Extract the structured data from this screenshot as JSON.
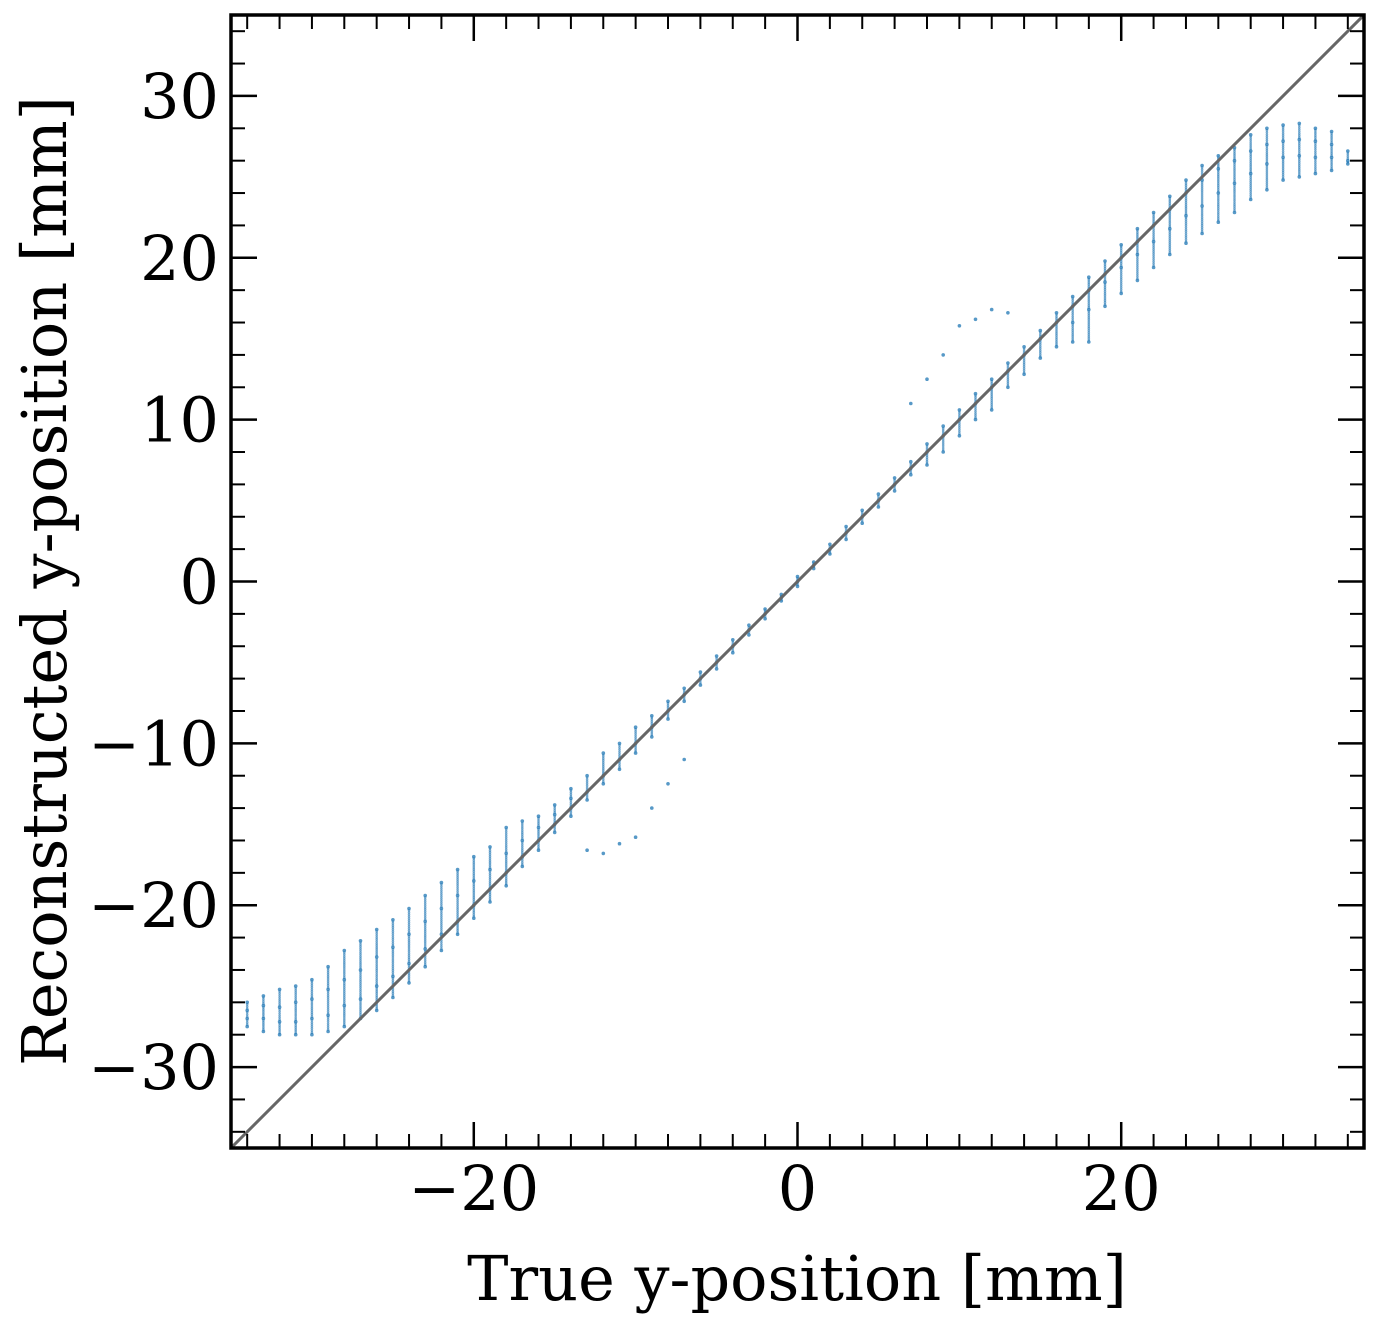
{
  "chart_data": {
    "type": "scatter",
    "title": "",
    "xlabel": "True y-position [mm]",
    "ylabel": "Reconstructed y-position [mm]",
    "xlim": [
      -35,
      35
    ],
    "ylim": [
      -35,
      35
    ],
    "x_ticks": [
      -20,
      0,
      20
    ],
    "x_tick_labels": [
      "−20",
      "0",
      "20"
    ],
    "y_ticks": [
      -30,
      -20,
      -10,
      0,
      10,
      20,
      30
    ],
    "y_tick_labels": [
      "−30",
      "−20",
      "−10",
      "0",
      "10",
      "20",
      "30"
    ],
    "minor_tick_step": 2,
    "grid": false,
    "legend": "none",
    "reference_line": {
      "x": [
        -35,
        35
      ],
      "y": [
        -35,
        35
      ],
      "color": "#666666"
    },
    "series": [
      {
        "color": "#1f77b4",
        "marker": "dot",
        "columns": [
          {
            "x": -34,
            "y": [
              -27.5,
              -27.0,
              -26.5,
              -26.0
            ]
          },
          {
            "x": -33,
            "y": [
              -27.8,
              -27.0,
              -26.2,
              -25.6
            ]
          },
          {
            "x": -32,
            "y": [
              -28.0,
              -27.2,
              -26.3,
              -25.2
            ]
          },
          {
            "x": -31,
            "y": [
              -28.0,
              -27.2,
              -26.0,
              -25.0
            ]
          },
          {
            "x": -30,
            "y": [
              -28.0,
              -27.0,
              -25.8,
              -24.6
            ]
          },
          {
            "x": -29,
            "y": [
              -27.8,
              -26.8,
              -25.2,
              -23.8
            ]
          },
          {
            "x": -28,
            "y": [
              -27.5,
              -26.2,
              -24.6,
              -22.8
            ]
          },
          {
            "x": -27,
            "y": [
              -27.0,
              -25.8,
              -24.0,
              -22.2
            ]
          },
          {
            "x": -26,
            "y": [
              -26.5,
              -25.0,
              -23.2,
              -21.5
            ]
          },
          {
            "x": -25,
            "y": [
              -25.7,
              -24.4,
              -22.6,
              -20.9
            ]
          },
          {
            "x": -24,
            "y": [
              -24.8,
              -23.6,
              -21.8,
              -20.2
            ]
          },
          {
            "x": -23,
            "y": [
              -23.8,
              -22.7,
              -21.0,
              -19.4
            ]
          },
          {
            "x": -22,
            "y": [
              -22.8,
              -21.8,
              -20.2,
              -18.6
            ]
          },
          {
            "x": -21,
            "y": [
              -21.8,
              -21.0,
              -19.4,
              -17.8
            ]
          },
          {
            "x": -20,
            "y": [
              -20.8,
              -20.0,
              -18.5,
              -17.0
            ]
          },
          {
            "x": -19,
            "y": [
              -19.8,
              -19.0,
              -17.8,
              -16.4
            ]
          },
          {
            "x": -18,
            "y": [
              -18.8,
              -18.0,
              -16.8,
              -15.2
            ]
          },
          {
            "x": -17,
            "y": [
              -17.6,
              -17.0,
              -16.0,
              -14.8
            ]
          },
          {
            "x": -16,
            "y": [
              -16.6,
              -16.0,
              -15.2,
              -14.5
            ]
          },
          {
            "x": -15,
            "y": [
              -15.5,
              -15.0,
              -14.4,
              -13.8
            ]
          },
          {
            "x": -14,
            "y": [
              -14.5,
              -14.0,
              -13.4,
              -12.8
            ]
          },
          {
            "x": -13,
            "y": [
              -16.6,
              -13.5,
              -13.0,
              -12.0
            ]
          },
          {
            "x": -12,
            "y": [
              -16.8,
              -12.5,
              -12.0,
              -10.6
            ]
          },
          {
            "x": -11,
            "y": [
              -16.2,
              -11.6,
              -11.0,
              -10.0
            ]
          },
          {
            "x": -10,
            "y": [
              -15.8,
              -10.6,
              -10.0,
              -9.0
            ]
          },
          {
            "x": -9,
            "y": [
              -14.0,
              -9.6,
              -9.0,
              -8.3
            ]
          },
          {
            "x": -8,
            "y": [
              -12.5,
              -8.5,
              -8.0,
              -7.4
            ]
          },
          {
            "x": -7,
            "y": [
              -11.0,
              -7.4,
              -7.0,
              -6.6
            ]
          },
          {
            "x": -6,
            "y": [
              -6.4,
              -6.0,
              -5.6
            ]
          },
          {
            "x": -5,
            "y": [
              -5.4,
              -5.0,
              -4.6
            ]
          },
          {
            "x": -4,
            "y": [
              -4.4,
              -4.0,
              -3.6
            ]
          },
          {
            "x": -3,
            "y": [
              -3.3,
              -3.0,
              -2.7
            ]
          },
          {
            "x": -2,
            "y": [
              -2.3,
              -2.0,
              -1.7
            ]
          },
          {
            "x": -1,
            "y": [
              -1.2,
              -1.0,
              -0.8
            ]
          },
          {
            "x": 0,
            "y": [
              -0.3,
              0.0,
              0.3
            ]
          },
          {
            "x": 1,
            "y": [
              0.8,
              1.0,
              1.2
            ]
          },
          {
            "x": 2,
            "y": [
              1.7,
              2.0,
              2.3
            ]
          },
          {
            "x": 3,
            "y": [
              2.6,
              3.0,
              3.4
            ]
          },
          {
            "x": 4,
            "y": [
              3.6,
              4.0,
              4.4
            ]
          },
          {
            "x": 5,
            "y": [
              4.6,
              5.0,
              5.4
            ]
          },
          {
            "x": 6,
            "y": [
              5.6,
              6.0,
              6.4
            ]
          },
          {
            "x": 7,
            "y": [
              6.6,
              7.0,
              7.4,
              11.0
            ]
          },
          {
            "x": 8,
            "y": [
              7.2,
              8.0,
              8.5,
              12.5
            ]
          },
          {
            "x": 9,
            "y": [
              8.0,
              9.0,
              9.6,
              14.0
            ]
          },
          {
            "x": 10,
            "y": [
              9.0,
              10.0,
              10.6,
              15.8
            ]
          },
          {
            "x": 11,
            "y": [
              10.0,
              11.0,
              11.6,
              16.2
            ]
          },
          {
            "x": 12,
            "y": [
              10.6,
              12.0,
              12.5,
              16.8
            ]
          },
          {
            "x": 13,
            "y": [
              12.0,
              13.0,
              13.5,
              16.6
            ]
          },
          {
            "x": 14,
            "y": [
              12.8,
              14.0,
              14.5
            ]
          },
          {
            "x": 15,
            "y": [
              13.8,
              15.0,
              15.5
            ]
          },
          {
            "x": 16,
            "y": [
              14.5,
              16.0,
              16.6
            ]
          },
          {
            "x": 17,
            "y": [
              14.8,
              16.0,
              17.0,
              17.6
            ]
          },
          {
            "x": 18,
            "y": [
              14.8,
              16.8,
              18.0,
              18.8
            ]
          },
          {
            "x": 19,
            "y": [
              17.0,
              18.5,
              19.0,
              19.8
            ]
          },
          {
            "x": 20,
            "y": [
              17.8,
              19.4,
              20.0,
              20.8
            ]
          },
          {
            "x": 21,
            "y": [
              18.6,
              20.2,
              21.0,
              21.8
            ]
          },
          {
            "x": 22,
            "y": [
              19.4,
              21.0,
              22.0,
              22.8
            ]
          },
          {
            "x": 23,
            "y": [
              20.2,
              21.8,
              23.0,
              23.8
            ]
          },
          {
            "x": 24,
            "y": [
              20.9,
              22.6,
              24.0,
              24.8
            ]
          },
          {
            "x": 25,
            "y": [
              21.5,
              23.2,
              24.8,
              25.7
            ]
          },
          {
            "x": 26,
            "y": [
              22.2,
              24.0,
              25.5,
              26.3
            ]
          },
          {
            "x": 27,
            "y": [
              22.8,
              24.6,
              26.0,
              26.8
            ]
          },
          {
            "x": 28,
            "y": [
              23.6,
              25.2,
              26.6,
              27.6
            ]
          },
          {
            "x": 29,
            "y": [
              24.2,
              25.8,
              27.0,
              28.0
            ]
          },
          {
            "x": 30,
            "y": [
              24.8,
              26.2,
              27.2,
              28.2
            ]
          },
          {
            "x": 31,
            "y": [
              25.0,
              26.3,
              27.3,
              28.3
            ]
          },
          {
            "x": 32,
            "y": [
              25.2,
              26.2,
              27.2,
              28.0
            ]
          },
          {
            "x": 33,
            "y": [
              25.4,
              26.2,
              27.0,
              27.8
            ]
          },
          {
            "x": 34,
            "y": [
              25.8,
              26.0,
              26.6
            ]
          }
        ]
      }
    ]
  }
}
